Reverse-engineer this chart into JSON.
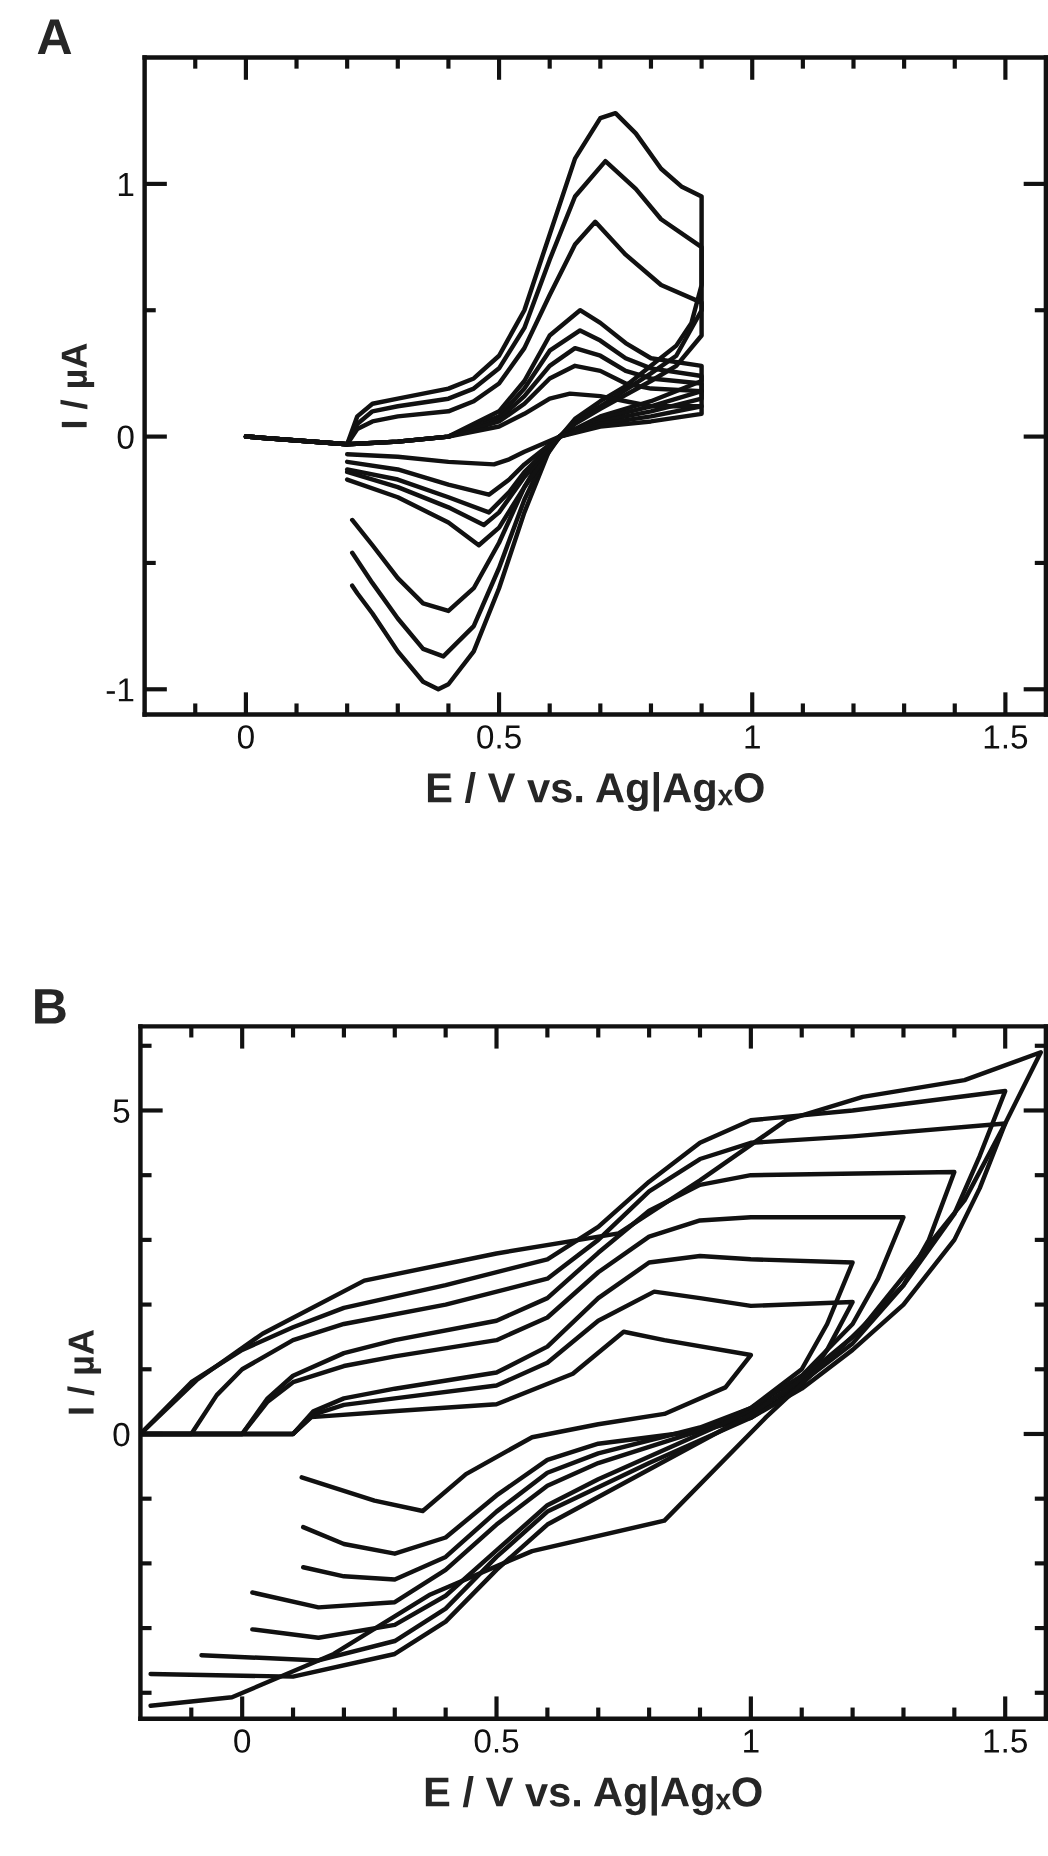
{
  "chart_data": [
    {
      "type": "line",
      "title": "A",
      "xlabel": "E / V vs. Ag|AgₓO",
      "ylabel": "I / µA",
      "xlim": [
        -0.2,
        1.58
      ],
      "ylim": [
        -1.1,
        1.5
      ],
      "line_style": "solid",
      "xticks": [
        {
          "value": -0.1,
          "label": null
        },
        0,
        {
          "value": 0.1,
          "label": null
        },
        {
          "value": 0.2,
          "label": null
        },
        {
          "value": 0.3,
          "label": null
        },
        {
          "value": 0.4,
          "label": null
        },
        0.5,
        {
          "value": 0.6,
          "label": null
        },
        {
          "value": 0.7,
          "label": null
        },
        {
          "value": 0.8,
          "label": null
        },
        {
          "value": 0.9,
          "label": null
        },
        1,
        {
          "value": 1.1,
          "label": null
        },
        {
          "value": 1.2,
          "label": null
        },
        {
          "value": 1.3,
          "label": null
        },
        {
          "value": 1.4,
          "label": null
        },
        1.5
      ],
      "yticks": [
        -1,
        {
          "value": -0.5,
          "label": null
        },
        0,
        {
          "value": 0.5,
          "label": null
        },
        1
      ],
      "series": [
        {
          "color": "#111111",
          "x": [
            0,
            0.2,
            0.22,
            0.25,
            0.3,
            0.4,
            0.45,
            0.5,
            0.55,
            0.6,
            0.65,
            0.7,
            0.73,
            0.77,
            0.82,
            0.86,
            0.9,
            0.9,
            0.88,
            0.85,
            0.8,
            0.75,
            0.7,
            0.65,
            0.6,
            0.55,
            0.5,
            0.45,
            0.4,
            0.38,
            0.35,
            0.3,
            0.25,
            0.22,
            0.21
          ],
          "values": [
            0,
            -0.03,
            0.08,
            0.13,
            0.15,
            0.19,
            0.23,
            0.32,
            0.5,
            0.8,
            1.1,
            1.26,
            1.28,
            1.2,
            1.06,
            0.99,
            0.95,
            0.6,
            0.45,
            0.36,
            0.28,
            0.2,
            0.14,
            0.07,
            -0.05,
            -0.3,
            -0.6,
            -0.85,
            -0.98,
            -1.0,
            -0.97,
            -0.85,
            -0.7,
            -0.62,
            -0.59
          ]
        },
        {
          "color": "#111111",
          "x": [
            0,
            0.2,
            0.22,
            0.25,
            0.3,
            0.4,
            0.45,
            0.5,
            0.55,
            0.6,
            0.65,
            0.71,
            0.77,
            0.82,
            0.9,
            0.9,
            0.85,
            0.8,
            0.7,
            0.65,
            0.6,
            0.55,
            0.5,
            0.45,
            0.39,
            0.35,
            0.3,
            0.25,
            0.21
          ],
          "values": [
            0,
            -0.03,
            0.05,
            0.1,
            0.12,
            0.15,
            0.19,
            0.27,
            0.43,
            0.7,
            0.95,
            1.09,
            0.98,
            0.86,
            0.75,
            0.5,
            0.32,
            0.25,
            0.12,
            0.06,
            -0.04,
            -0.25,
            -0.52,
            -0.75,
            -0.87,
            -0.84,
            -0.72,
            -0.58,
            -0.46
          ]
        },
        {
          "color": "#111111",
          "x": [
            0,
            0.2,
            0.22,
            0.25,
            0.3,
            0.4,
            0.45,
            0.5,
            0.55,
            0.6,
            0.65,
            0.69,
            0.75,
            0.82,
            0.9,
            0.9,
            0.85,
            0.8,
            0.7,
            0.65,
            0.6,
            0.55,
            0.5,
            0.45,
            0.4,
            0.35,
            0.3,
            0.25,
            0.21
          ],
          "values": [
            0,
            -0.03,
            0.03,
            0.06,
            0.08,
            0.1,
            0.14,
            0.21,
            0.35,
            0.56,
            0.76,
            0.85,
            0.72,
            0.6,
            0.53,
            0.4,
            0.28,
            0.22,
            0.11,
            0.05,
            -0.03,
            -0.2,
            -0.42,
            -0.6,
            -0.69,
            -0.66,
            -0.56,
            -0.43,
            -0.33
          ]
        },
        {
          "color": "#111111",
          "x": [
            0,
            0.2,
            0.3,
            0.4,
            0.5,
            0.55,
            0.6,
            0.66,
            0.7,
            0.75,
            0.8,
            0.9,
            0.9,
            0.8,
            0.7,
            0.62,
            0.55,
            0.5,
            0.46,
            0.4,
            0.3,
            0.2
          ],
          "values": [
            0,
            -0.03,
            -0.02,
            0,
            0.1,
            0.22,
            0.4,
            0.5,
            0.45,
            0.37,
            0.31,
            0.28,
            0.22,
            0.14,
            0.08,
            0,
            -0.2,
            -0.36,
            -0.43,
            -0.34,
            -0.24,
            -0.17
          ]
        },
        {
          "color": "#111111",
          "x": [
            0,
            0.2,
            0.3,
            0.4,
            0.5,
            0.55,
            0.6,
            0.66,
            0.7,
            0.75,
            0.8,
            0.9,
            0.9,
            0.8,
            0.7,
            0.62,
            0.55,
            0.5,
            0.47,
            0.4,
            0.3,
            0.2
          ],
          "values": [
            0,
            -0.03,
            -0.02,
            0,
            0.08,
            0.19,
            0.34,
            0.42,
            0.38,
            0.31,
            0.27,
            0.24,
            0.18,
            0.12,
            0.07,
            0,
            -0.16,
            -0.3,
            -0.35,
            -0.28,
            -0.2,
            -0.14
          ]
        },
        {
          "color": "#111111",
          "x": [
            0,
            0.2,
            0.3,
            0.4,
            0.5,
            0.55,
            0.6,
            0.65,
            0.7,
            0.75,
            0.8,
            0.9,
            0.9,
            0.8,
            0.7,
            0.62,
            0.55,
            0.52,
            0.48,
            0.4,
            0.3,
            0.2
          ],
          "values": [
            0,
            -0.03,
            -0.02,
            0,
            0.07,
            0.16,
            0.28,
            0.35,
            0.32,
            0.26,
            0.23,
            0.21,
            0.15,
            0.1,
            0.06,
            0,
            -0.14,
            -0.22,
            -0.3,
            -0.24,
            -0.17,
            -0.13
          ]
        },
        {
          "color": "#111111",
          "x": [
            0,
            0.2,
            0.3,
            0.4,
            0.5,
            0.55,
            0.6,
            0.65,
            0.7,
            0.75,
            0.8,
            0.9,
            0.9,
            0.8,
            0.7,
            0.62,
            0.55,
            0.52,
            0.48,
            0.4,
            0.3,
            0.2
          ],
          "values": [
            0,
            -0.03,
            -0.02,
            0,
            0.06,
            0.13,
            0.23,
            0.28,
            0.26,
            0.21,
            0.19,
            0.18,
            0.12,
            0.08,
            0.05,
            0,
            -0.11,
            -0.17,
            -0.23,
            -0.19,
            -0.13,
            -0.1
          ]
        },
        {
          "color": "#111111",
          "x": [
            0,
            0.2,
            0.3,
            0.4,
            0.5,
            0.55,
            0.6,
            0.64,
            0.7,
            0.75,
            0.8,
            0.9,
            0.9,
            0.8,
            0.7,
            0.62,
            0.55,
            0.52,
            0.49,
            0.4,
            0.3,
            0.2
          ],
          "values": [
            0,
            -0.03,
            -0.02,
            0,
            0.04,
            0.09,
            0.15,
            0.17,
            0.16,
            0.14,
            0.12,
            0.12,
            0.09,
            0.06,
            0.04,
            0,
            -0.06,
            -0.09,
            -0.11,
            -0.1,
            -0.08,
            -0.07
          ]
        }
      ]
    },
    {
      "type": "line",
      "title": "B",
      "xlabel": "E / V vs. Ag|AgₓO",
      "ylabel": "I / µA",
      "xlim": [
        -0.2,
        1.58
      ],
      "ylim": [
        -4.4,
        6.3
      ],
      "line_style": "solid",
      "xticks": [
        {
          "value": -0.1,
          "label": null
        },
        0,
        {
          "value": 0.1,
          "label": null
        },
        {
          "value": 0.2,
          "label": null
        },
        {
          "value": 0.3,
          "label": null
        },
        {
          "value": 0.4,
          "label": null
        },
        0.5,
        {
          "value": 0.6,
          "label": null
        },
        {
          "value": 0.7,
          "label": null
        },
        {
          "value": 0.8,
          "label": null
        },
        {
          "value": 0.9,
          "label": null
        },
        1,
        {
          "value": 1.1,
          "label": null
        },
        {
          "value": 1.2,
          "label": null
        },
        {
          "value": 1.3,
          "label": null
        },
        {
          "value": 1.4,
          "label": null
        },
        1.5
      ],
      "yticks": [
        {
          "value": -4,
          "label": null
        },
        {
          "value": -3,
          "label": null
        },
        {
          "value": -2,
          "label": null
        },
        {
          "value": -1,
          "label": null
        },
        0,
        {
          "value": 1,
          "label": null
        },
        {
          "value": 2,
          "label": null
        },
        {
          "value": 3,
          "label": null
        },
        {
          "value": 4,
          "label": null
        },
        5,
        {
          "value": 6,
          "label": null
        }
      ],
      "series": [
        {
          "color": "#111111",
          "x": [
            -0.2,
            0.1,
            0.136,
            0.31,
            0.5,
            0.65,
            0.75,
            0.83,
            1.0,
            0.95,
            0.83,
            0.7,
            0.57,
            0.44,
            0.355,
            0.26,
            0.117
          ],
          "values": [
            0,
            0,
            0.26,
            0.36,
            0.46,
            0.93,
            1.58,
            1.45,
            1.22,
            0.72,
            0.31,
            0.15,
            -0.05,
            -0.62,
            -1.19,
            -1.03,
            -0.67
          ]
        },
        {
          "color": "#111111",
          "x": [
            -0.2,
            0.1,
            0.14,
            0.2,
            0.3,
            0.5,
            0.6,
            0.7,
            0.81,
            0.9,
            1.0,
            1.2,
            1.15,
            1.1,
            1.0,
            0.9,
            0.7,
            0.6,
            0.5,
            0.4,
            0.3,
            0.2,
            0.12
          ],
          "values": [
            0,
            0,
            0.3,
            0.45,
            0.55,
            0.75,
            1.1,
            1.75,
            2.2,
            2.1,
            1.98,
            2.04,
            1.3,
            0.75,
            0.25,
            0.05,
            -0.15,
            -0.4,
            -0.95,
            -1.6,
            -1.85,
            -1.7,
            -1.44
          ]
        },
        {
          "color": "#111111",
          "x": [
            -0.2,
            0.1,
            0.14,
            0.2,
            0.3,
            0.5,
            0.6,
            0.7,
            0.8,
            0.9,
            1.0,
            1.2,
            1.15,
            1.1,
            1.0,
            0.9,
            0.7,
            0.6,
            0.5,
            0.4,
            0.3,
            0.2,
            0.12
          ],
          "values": [
            0,
            0,
            0.35,
            0.55,
            0.7,
            0.95,
            1.35,
            2.1,
            2.65,
            2.75,
            2.7,
            2.65,
            1.7,
            1.0,
            0.4,
            0.1,
            -0.3,
            -0.6,
            -1.2,
            -1.9,
            -2.25,
            -2.2,
            -2.06
          ]
        },
        {
          "color": "#111111",
          "x": [
            -0.2,
            0,
            0.05,
            0.1,
            0.2,
            0.3,
            0.5,
            0.6,
            0.7,
            0.8,
            0.9,
            1.0,
            1.3,
            1.25,
            1.2,
            1.1,
            1.0,
            0.9,
            0.7,
            0.6,
            0.5,
            0.4,
            0.3,
            0.15,
            0.02
          ],
          "values": [
            0,
            0,
            0.5,
            0.8,
            1.05,
            1.2,
            1.45,
            1.8,
            2.5,
            3.05,
            3.3,
            3.35,
            3.35,
            2.4,
            1.7,
            0.9,
            0.4,
            0.05,
            -0.45,
            -0.8,
            -1.4,
            -2.1,
            -2.6,
            -2.68,
            -2.45
          ]
        },
        {
          "color": "#111111",
          "x": [
            -0.2,
            0,
            0.05,
            0.1,
            0.2,
            0.3,
            0.5,
            0.6,
            0.7,
            0.8,
            0.9,
            1.0,
            1.4,
            1.35,
            1.3,
            1.2,
            1.1,
            1.0,
            0.9,
            0.7,
            0.6,
            0.5,
            0.4,
            0.3,
            0.15,
            0.02
          ],
          "values": [
            0,
            0,
            0.55,
            0.9,
            1.25,
            1.45,
            1.75,
            2.1,
            2.8,
            3.45,
            3.85,
            4.0,
            4.05,
            3.0,
            2.3,
            1.4,
            0.8,
            0.35,
            0.0,
            -0.7,
            -1.1,
            -1.8,
            -2.5,
            -2.95,
            -3.15,
            -3.02
          ]
        },
        {
          "color": "#111111",
          "x": [
            -0.2,
            -0.1,
            -0.05,
            0,
            0.1,
            0.2,
            0.4,
            0.6,
            0.7,
            0.8,
            0.9,
            1.0,
            1.2,
            1.5,
            1.45,
            1.4,
            1.3,
            1.2,
            1.1,
            1.0,
            0.8,
            0.6,
            0.5,
            0.4,
            0.3,
            0.15,
            -0.08
          ],
          "values": [
            0,
            0,
            0.6,
            1.0,
            1.45,
            1.7,
            2.0,
            2.4,
            3.0,
            3.75,
            4.25,
            4.5,
            4.6,
            4.8,
            3.8,
            3.0,
            2.0,
            1.3,
            0.7,
            0.25,
            -0.45,
            -1.2,
            -1.9,
            -2.7,
            -3.2,
            -3.5,
            -3.42
          ]
        },
        {
          "color": "#111111",
          "x": [
            -0.2,
            -0.1,
            0,
            0.1,
            0.2,
            0.4,
            0.6,
            0.7,
            0.8,
            0.9,
            1.0,
            1.2,
            1.5,
            1.45,
            1.4,
            1.3,
            1.2,
            1.1,
            1.0,
            0.8,
            0.6,
            0.5,
            0.4,
            0.3,
            0.1,
            -0.18
          ],
          "values": [
            0,
            0.8,
            1.3,
            1.65,
            1.95,
            2.3,
            2.7,
            3.2,
            3.9,
            4.5,
            4.85,
            5.0,
            5.3,
            4.3,
            3.4,
            2.3,
            1.5,
            0.85,
            0.3,
            -0.55,
            -1.4,
            -2.1,
            -2.9,
            -3.4,
            -3.75,
            -3.71
          ]
        },
        {
          "color": "#111111",
          "x": [
            -0.2,
            -0.09,
            0.04,
            0.24,
            0.5,
            0.74,
            0.9,
            1.07,
            1.22,
            1.42,
            1.57,
            1.5,
            1.42,
            1.22,
            1.03,
            0.83,
            0.57,
            0.37,
            0.18,
            -0.02,
            -0.18
          ],
          "values": [
            0,
            0.83,
            1.55,
            2.37,
            2.79,
            3.1,
            3.92,
            4.85,
            5.21,
            5.47,
            5.9,
            4.8,
            3.61,
            1.65,
            0.26,
            -1.34,
            -1.81,
            -2.48,
            -3.4,
            -4.07,
            -4.2
          ]
        }
      ]
    }
  ]
}
